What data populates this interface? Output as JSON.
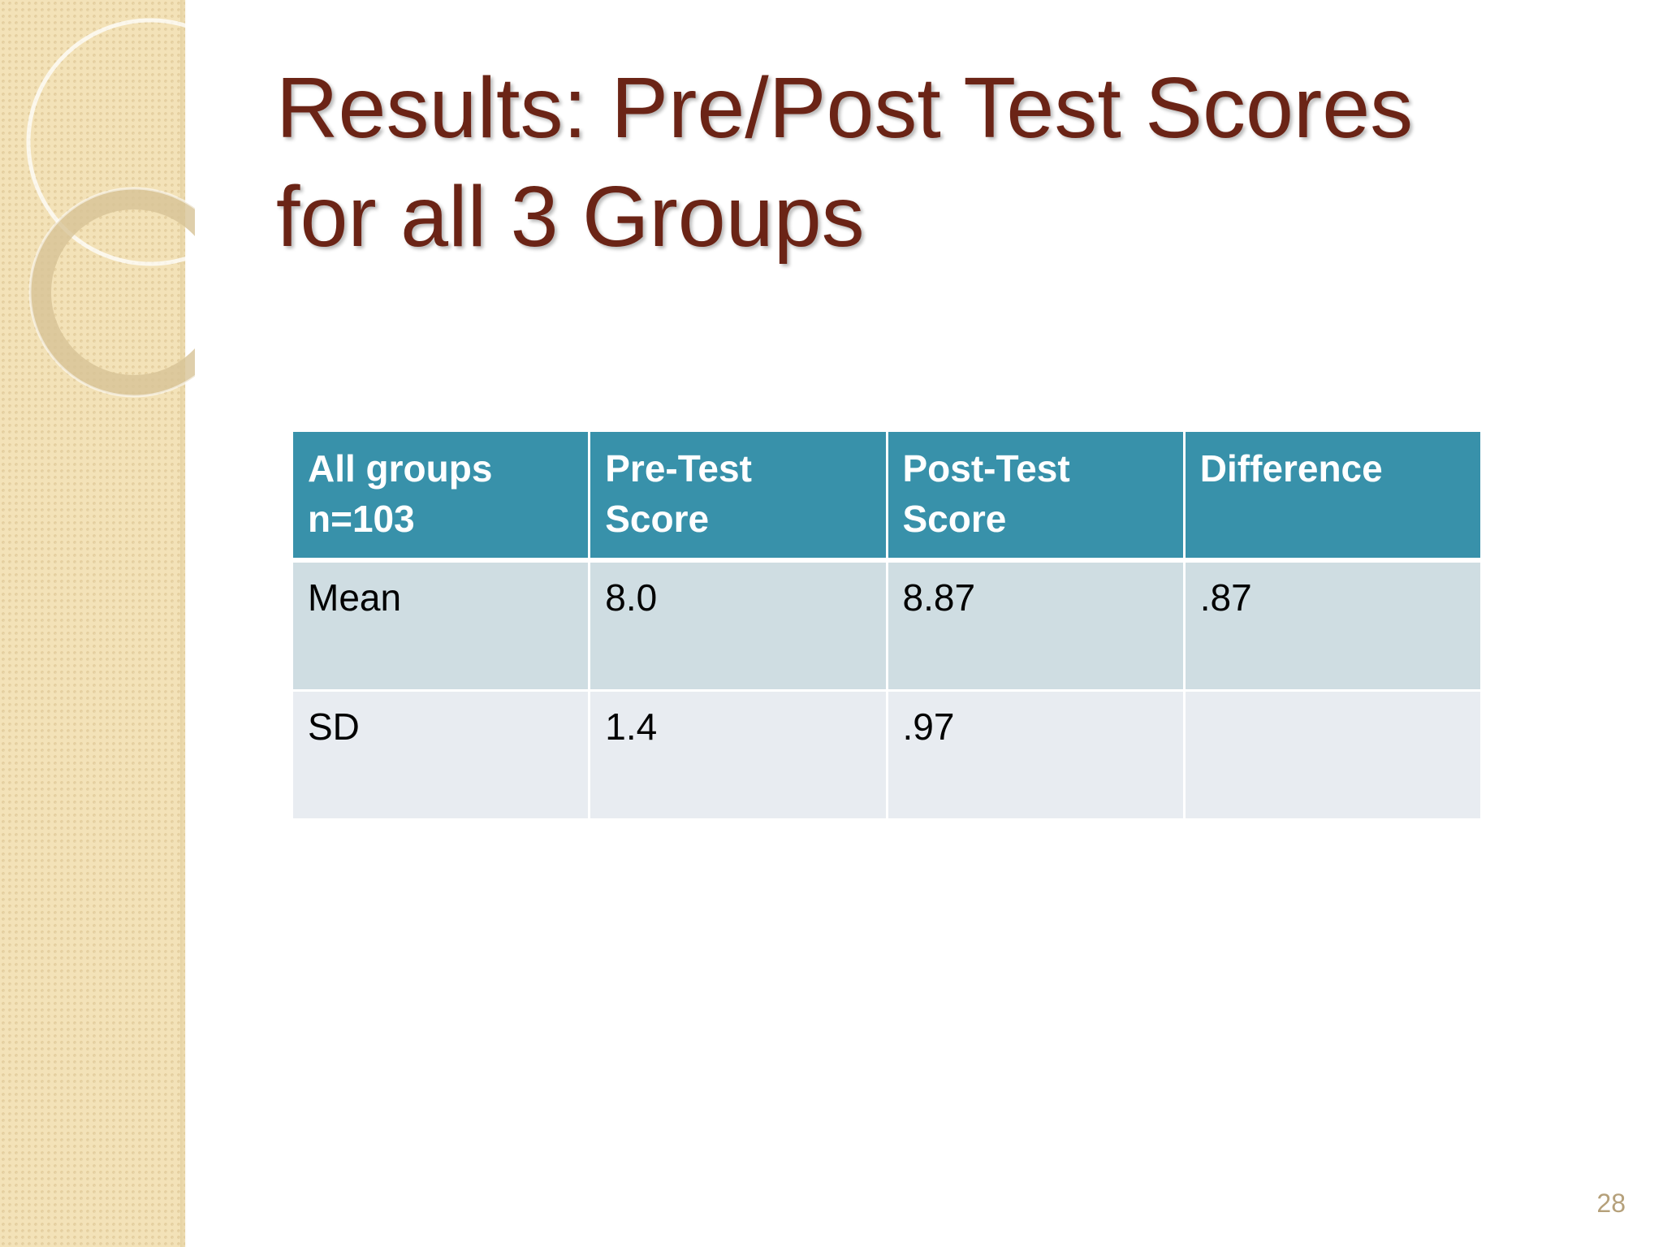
{
  "slide": {
    "title_line_1": "Results:  Pre/Post Test Scores",
    "title_line_2": "for all 3 Groups",
    "page_number": "28"
  },
  "table": {
    "header": {
      "col1_line1": "All groups",
      "col1_line2": "n=103",
      "col2_line1": "Pre-Test",
      "col2_line2": "Score",
      "col3_line1": "Post-Test",
      "col3_line2": "Score",
      "col4_line1": "Difference"
    },
    "rows": [
      {
        "label": "Mean",
        "pre": "8.0",
        "post": "8.87",
        "difference": ".87"
      },
      {
        "label": "SD",
        "pre": "1.4",
        "post": ".97",
        "difference": ""
      }
    ]
  },
  "colors": {
    "title": "#6b2416",
    "header_background": "#3891aa",
    "row_odd_background": "#cfdde2",
    "row_even_background": "#e8ecf1",
    "side_panel": "#f3e2b8"
  }
}
